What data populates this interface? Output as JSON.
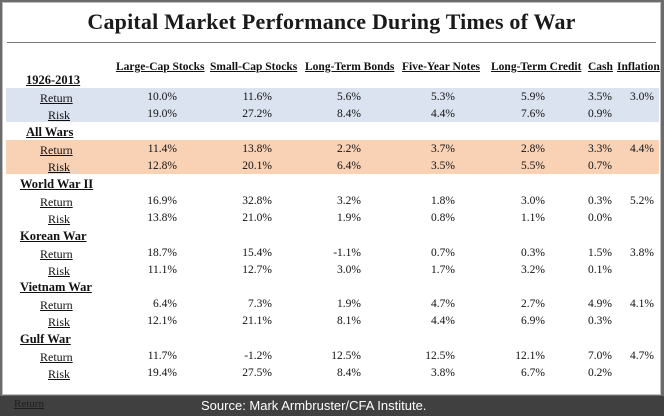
{
  "chart_data": {
    "type": "table",
    "title": "Capital Market Performance During Times of War",
    "columns": [
      "Large-Cap Stocks",
      "Small-Cap Stocks",
      "Long-Term Bonds",
      "Five-Year Notes",
      "Long-Term Credit",
      "Cash",
      "Inflation"
    ],
    "sections": [
      {
        "name": "1926-2013",
        "highlight": "#dbe3f0",
        "rows": [
          {
            "label": "Return",
            "values": [
              "10.0%",
              "11.6%",
              "5.6%",
              "5.3%",
              "5.9%",
              "3.5%",
              "3.0%"
            ]
          },
          {
            "label": "Risk",
            "values": [
              "19.0%",
              "27.2%",
              "8.4%",
              "4.4%",
              "7.6%",
              "0.9%",
              ""
            ]
          }
        ]
      },
      {
        "name": "All Wars",
        "highlight": "#f9d2b6",
        "rows": [
          {
            "label": "Return",
            "values": [
              "11.4%",
              "13.8%",
              "2.2%",
              "3.7%",
              "2.8%",
              "3.3%",
              "4.4%"
            ]
          },
          {
            "label": "Risk",
            "values": [
              "12.8%",
              "20.1%",
              "6.4%",
              "3.5%",
              "5.5%",
              "0.7%",
              ""
            ]
          }
        ]
      },
      {
        "name": "World War II",
        "highlight": "",
        "rows": [
          {
            "label": "Return",
            "values": [
              "16.9%",
              "32.8%",
              "3.2%",
              "1.8%",
              "3.0%",
              "0.3%",
              "5.2%"
            ]
          },
          {
            "label": "Risk",
            "values": [
              "13.8%",
              "21.0%",
              "1.9%",
              "0.8%",
              "1.1%",
              "0.0%",
              ""
            ]
          }
        ]
      },
      {
        "name": "Korean War",
        "highlight": "",
        "rows": [
          {
            "label": "Return",
            "values": [
              "18.7%",
              "15.4%",
              "-1.1%",
              "0.7%",
              "0.3%",
              "1.5%",
              "3.8%"
            ]
          },
          {
            "label": "Risk",
            "values": [
              "11.1%",
              "12.7%",
              "3.0%",
              "1.7%",
              "3.2%",
              "0.1%",
              ""
            ]
          }
        ]
      },
      {
        "name": "Vietnam War",
        "highlight": "",
        "rows": [
          {
            "label": "Return",
            "values": [
              "6.4%",
              "7.3%",
              "1.9%",
              "4.7%",
              "2.7%",
              "4.9%",
              "4.1%"
            ]
          },
          {
            "label": "Risk",
            "values": [
              "12.1%",
              "21.1%",
              "8.1%",
              "4.4%",
              "6.9%",
              "0.3%",
              ""
            ]
          }
        ]
      },
      {
        "name": "Gulf War",
        "highlight": "",
        "rows": [
          {
            "label": "Return",
            "values": [
              "11.7%",
              "-1.2%",
              "12.5%",
              "12.5%",
              "12.1%",
              "7.0%",
              "4.7%"
            ]
          },
          {
            "label": "Risk",
            "values": [
              "19.4%",
              "27.5%",
              "8.4%",
              "3.8%",
              "6.7%",
              "0.2%",
              ""
            ]
          }
        ]
      }
    ]
  },
  "footer": {
    "source": "Source: Mark Armbruster/CFA Institute.",
    "ghost_label": "Return"
  }
}
